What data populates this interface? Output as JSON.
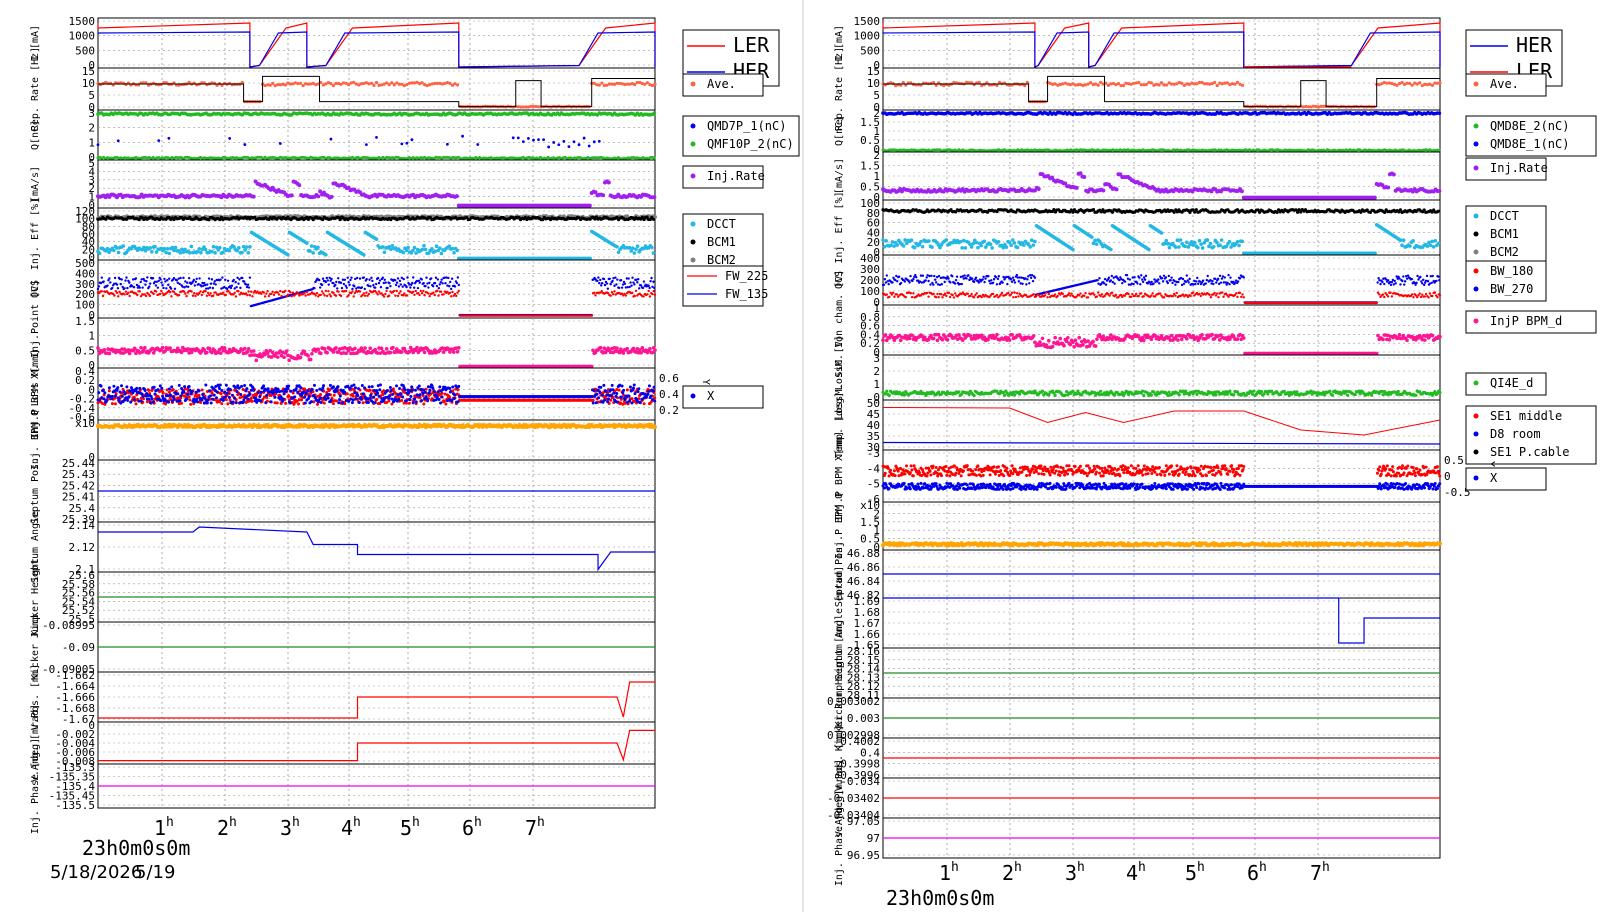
{
  "colors": {
    "red": "#ff0000",
    "blue": "#0000ee",
    "green": "#22bb22",
    "purple": "#a020f0",
    "cyan": "#22b8e6",
    "black": "#000000",
    "gray": "#808080",
    "salmon": "#ff6347",
    "pink": "#ff1493",
    "orange": "#ffa500",
    "magenta": "#ee00ee",
    "darkgreen": "#228b22",
    "grid": "#999999"
  },
  "left": {
    "date_label": "5/18/2026",
    "date_label_2": "5/19",
    "time_origin_label": "23h0m0s0m",
    "time_axis": [
      "1h",
      "2h",
      "3h",
      "4h",
      "5h",
      "6h",
      "7h"
    ],
    "panels": [
      {
        "ylabel": "I [mA]",
        "ticks": [
          "1500",
          "1000",
          "500",
          "0"
        ],
        "legend": [
          "LER",
          "HER"
        ],
        "legend_colors": [
          "red",
          "blue"
        ]
      },
      {
        "ylabel": "Rep. Rate [Hz]",
        "ticks": [
          "15",
          "10",
          "5",
          "0"
        ],
        "legend": [
          "Ave."
        ],
        "legend_colors": [
          "salmon"
        ]
      },
      {
        "ylabel": "Q[nC]",
        "ticks": [
          "3",
          "2",
          "1",
          "0"
        ],
        "legend": [
          "QMD7P_1(nC)",
          "QMF10P_2(nC)"
        ],
        "legend_colors": [
          "blue",
          "green"
        ]
      },
      {
        "ylabel": "[mA/s]",
        "ticks": [
          "5",
          "4",
          "3",
          "2",
          "1",
          "0"
        ],
        "legend": [
          "Inj.Rate"
        ],
        "legend_colors": [
          "purple"
        ]
      },
      {
        "ylabel": "Inj. Eff [%]",
        "ticks": [
          "120",
          "100",
          "80",
          "60",
          "40",
          "20",
          "0"
        ],
        "legend": [
          "DCCT",
          "BCM1",
          "BCM2"
        ],
        "legend_colors": [
          "cyan",
          "black",
          "gray"
        ]
      },
      {
        "ylabel": "OCS",
        "ticks": [
          "500",
          "400",
          "300",
          "200",
          "100",
          "0"
        ],
        "legend": [
          "FW_225",
          "FW_135"
        ],
        "legend_colors": [
          "red",
          "blue"
        ]
      },
      {
        "ylabel": "Loss M. Inj.Point [V]",
        "ticks": [
          "1.5",
          "1",
          "0.5",
          "0"
        ],
        "legend": [],
        "legend_colors": []
      },
      {
        "ylabel": "Inj.P BPM X[mm]",
        "ticks": [
          "0.4",
          "0.2",
          "0",
          "-0.2",
          "-0.4",
          "-0.6"
        ],
        "right_ticks": [
          "0.6",
          "0.4",
          "0.2"
        ],
        "right_label": "Y[mm]",
        "legend": [
          "X"
        ],
        "legend_colors": [
          "blue"
        ]
      },
      {
        "ylabel": "Inj. BPM Q",
        "ticks": [
          "x10",
          "0"
        ],
        "legend": [],
        "legend_colors": []
      },
      {
        "ylabel": "Septum Pos.",
        "ticks": [
          "25.44",
          "25.43",
          "25.42",
          "25.41",
          "25.4",
          "25.39"
        ],
        "legend": [],
        "legend_colors": []
      },
      {
        "ylabel": "Septum Angle",
        "ticks": [
          "2.14",
          "2.12",
          "2.1"
        ],
        "legend": [],
        "legend_colors": []
      },
      {
        "ylabel": "Kicker Height",
        "ticks": [
          "25.6",
          "25.58",
          "25.56",
          "25.54",
          "25.52",
          "25.5"
        ],
        "legend": [],
        "legend_colors": []
      },
      {
        "ylabel": "Kicker Jump",
        "ticks": [
          "-0.08995",
          "-0.09",
          "-0.09005"
        ],
        "legend": [],
        "legend_colors": []
      },
      {
        "ylabel": "V.Pos. [mm]",
        "ticks": [
          "-1.662",
          "-1.664",
          "-1.666",
          "-1.668",
          "-1.67"
        ],
        "legend": [],
        "legend_colors": []
      },
      {
        "ylabel": "V.Ang. [mrad]",
        "ticks": [
          "0",
          "-0.002",
          "-0.004",
          "-0.006",
          "-0.008"
        ],
        "legend": [],
        "legend_colors": []
      },
      {
        "ylabel": "Inj. Phase [deg]",
        "ticks": [
          "-135.3",
          "-135.35",
          "-135.4",
          "-135.45",
          "-135.5"
        ],
        "legend": [],
        "legend_colors": []
      }
    ]
  },
  "right": {
    "time_origin_label": "23h0m0s0m",
    "time_axis": [
      "1h",
      "2h",
      "3h",
      "4h",
      "5h",
      "6h",
      "7h"
    ],
    "panels": [
      {
        "ylabel": "I [mA]",
        "ticks": [
          "1500",
          "1000",
          "500",
          "0"
        ],
        "legend": [
          "HER",
          "LER"
        ],
        "legend_colors": [
          "blue",
          "red"
        ]
      },
      {
        "ylabel": "Rep. Rate [Hz]",
        "ticks": [
          "15",
          "10",
          "5",
          "0"
        ],
        "legend": [
          "Ave."
        ],
        "legend_colors": [
          "salmon"
        ]
      },
      {
        "ylabel": "Q[nC]",
        "ticks": [
          "2",
          "1.5",
          "1",
          "0.5",
          "0"
        ],
        "legend": [
          "QMD8E_2(nC)",
          "QMD8E_1(nC)"
        ],
        "legend_colors": [
          "green",
          "blue"
        ]
      },
      {
        "ylabel": "[mA/s]",
        "ticks": [
          "2",
          "1.5",
          "1",
          "0.5",
          "0"
        ],
        "legend": [
          "Inj.Rate"
        ],
        "legend_colors": [
          "purple"
        ]
      },
      {
        "ylabel": "Inj. Eff [%]",
        "ticks": [
          "100",
          "80",
          "60",
          "40",
          "20",
          "0"
        ],
        "legend": [
          "DCCT",
          "BCM1",
          "BCM2"
        ],
        "legend_colors": [
          "cyan",
          "black",
          "gray"
        ]
      },
      {
        "ylabel": "OCS",
        "ticks": [
          "400",
          "300",
          "200",
          "100",
          "0"
        ],
        "legend": [
          "BW_180",
          "BW_270"
        ],
        "legend_colors": [
          "red",
          "blue"
        ]
      },
      {
        "ylabel": "LossM. Ion cham. [V]",
        "ticks": [
          "1",
          "0.8",
          "0.6",
          "0.4",
          "0.2",
          "0"
        ],
        "legend": [
          "InjP BPM_d"
        ],
        "legend_colors": [
          "pink"
        ]
      },
      {
        "ylabel": "LossM. SiC [V]",
        "ticks": [
          "3",
          "2",
          "1",
          "0"
        ],
        "legend": [
          "QI4E_d"
        ],
        "legend_colors": [
          "green"
        ]
      },
      {
        "ylabel": "Temp. [deg]",
        "ticks": [
          "50",
          "45",
          "40",
          "35",
          "30"
        ],
        "legend": [
          "SE1 middle",
          "D8 room",
          "SE1 P.cable"
        ],
        "legend_colors": [
          "red",
          "blue",
          "black"
        ]
      },
      {
        "ylabel": "Inj.P BPM X[mm]",
        "ticks": [
          "-3",
          "-4",
          "-5",
          "-6"
        ],
        "right_ticks": [
          "0.5",
          "0",
          "-0.5"
        ],
        "right_label": "Y[mm]",
        "legend": [
          "X"
        ],
        "legend_colors": [
          "blue"
        ]
      },
      {
        "ylabel": "Inj.P BPM Q",
        "ticks": [
          "x10",
          "2",
          "1.5",
          "1",
          "0.5",
          "0"
        ],
        "legend": [],
        "legend_colors": []
      },
      {
        "ylabel": "Septum Pos.",
        "ticks": [
          "46.88",
          "46.86",
          "46.84",
          "46.82"
        ],
        "legend": [],
        "legend_colors": []
      },
      {
        "ylabel": "Septum Angle [mrad]",
        "ticks": [
          "1.69",
          "1.68",
          "1.67",
          "1.66",
          "1.65"
        ],
        "legend": [],
        "legend_colors": []
      },
      {
        "ylabel": "Kicker Height [mm]",
        "ticks": [
          "28.16",
          "28.15",
          "28.14",
          "28.13",
          "28.12",
          "28.11"
        ],
        "legend": [],
        "legend_colors": []
      },
      {
        "ylabel": "Kicker Jump",
        "ticks": [
          "0.003002",
          "0.003",
          "0.002998"
        ],
        "legend": [],
        "legend_colors": []
      },
      {
        "ylabel": "V.Pos. [mm]",
        "ticks": [
          "0.4002",
          "0.4",
          "0.3998",
          "0.3996"
        ],
        "legend": [],
        "legend_colors": []
      },
      {
        "ylabel": "V.Ang. [mrad]",
        "ticks": [
          "-0.034",
          "-0.03402",
          "-0.03404"
        ],
        "legend": [],
        "legend_colors": []
      },
      {
        "ylabel": "Inj. Phase [deg]",
        "ticks": [
          "97.05",
          "97",
          "96.95"
        ],
        "legend": [],
        "legend_colors": []
      }
    ]
  },
  "chart_data": [
    {
      "type": "line",
      "title": "",
      "xlabel": "",
      "x": [
        "23h",
        "1h",
        "2h",
        "3h",
        "4h",
        "5h",
        "6h",
        "7h"
      ],
      "series": [
        {
          "name": "LER",
          "values": [
            1500,
            1500,
            0,
            1500,
            1500,
            0,
            0,
            1450
          ]
        },
        {
          "name": "HER",
          "values": [
            1200,
            1200,
            0,
            1200,
            1200,
            0,
            0,
            1200
          ]
        }
      ],
      "ylabel": "I [mA]",
      "ylim": [
        0,
        1600
      ]
    },
    {
      "type": "line",
      "title": "",
      "xlabel": "",
      "x": [
        "23h",
        "1h",
        "2h",
        "3h",
        "4h",
        "5h",
        "6h",
        "7h"
      ],
      "series": [
        {
          "name": "HER",
          "values": [
            1200,
            1200,
            1000,
            1200,
            1200,
            0,
            0,
            1200
          ]
        },
        {
          "name": "LER",
          "values": [
            1500,
            1500,
            1300,
            1500,
            1500,
            0,
            0,
            1450
          ]
        }
      ],
      "ylabel": "I [mA]",
      "ylim": [
        0,
        1600
      ]
    }
  ]
}
